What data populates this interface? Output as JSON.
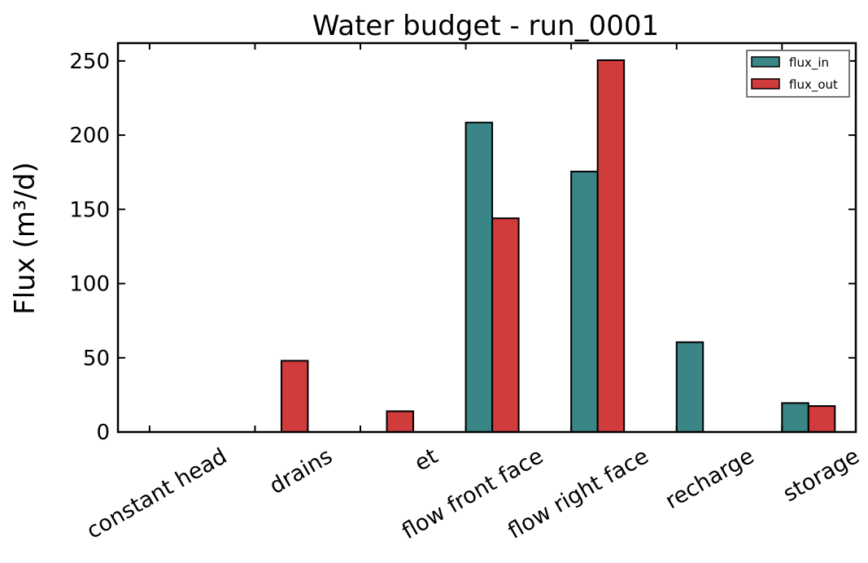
{
  "chart_data": {
    "type": "bar",
    "title": "Water budget - run_0001",
    "xlabel": "",
    "ylabel": "Flux (m³/d)",
    "ylim": [
      0,
      262
    ],
    "yticks": [
      0,
      50,
      100,
      150,
      200,
      250
    ],
    "grid": false,
    "legend_position": "top-right",
    "categories": [
      "constant head",
      "drains",
      "et",
      "flow front face",
      "flow right face",
      "recharge",
      "storage"
    ],
    "series": [
      {
        "name": "flux_in",
        "color": "#3a8585",
        "values": [
          0,
          0,
          0,
          208.5,
          175.5,
          60.5,
          19.5
        ]
      },
      {
        "name": "flux_out",
        "color": "#d03b3b",
        "values": [
          0,
          48,
          14,
          144,
          250.5,
          0,
          17.5
        ]
      }
    ]
  }
}
